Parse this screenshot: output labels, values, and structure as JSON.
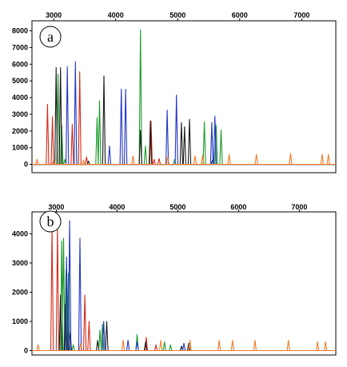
{
  "chart_data": [
    {
      "type": "line",
      "panel_label": "a",
      "xlim": [
        2650,
        7550
      ],
      "ylim": [
        -500,
        8600
      ],
      "x_ticks": [
        3000,
        4000,
        5000,
        6000,
        7000
      ],
      "x_tick_labels": [
        "3000",
        "4000",
        "5000",
        "6000",
        "7000"
      ],
      "y_ticks": [
        0,
        1000,
        2000,
        3000,
        4000,
        5000,
        6000,
        7000,
        8000
      ],
      "y_tick_labels": [
        "0",
        "1000",
        "2000",
        "3000",
        "4000",
        "5000",
        "6000",
        "7000",
        "8000"
      ],
      "grid": false,
      "series": [
        {
          "color": "#d62a1a",
          "peaks": [
            [
              2900,
              3600
            ],
            [
              2980,
              2850
            ],
            [
              3300,
              2400
            ],
            [
              3420,
              5550
            ],
            [
              3530,
              450
            ],
            [
              4570,
              2600
            ],
            [
              4620,
              300
            ],
            [
              4700,
              350
            ]
          ]
        },
        {
          "color": "#1a9a2a",
          "peaks": [
            [
              3070,
              5400
            ],
            [
              3130,
              2350
            ],
            [
              3180,
              300
            ],
            [
              3700,
              2800
            ],
            [
              3740,
              3800
            ],
            [
              4400,
              8050
            ],
            [
              4480,
              1100
            ],
            [
              4950,
              300
            ],
            [
              5430,
              2550
            ],
            [
              5620,
              2350
            ],
            [
              5700,
              2050
            ]
          ]
        },
        {
          "color": "#1a1a1a",
          "peaks": [
            [
              3040,
              5800
            ],
            [
              3110,
              5800
            ],
            [
              3560,
              200
            ],
            [
              3810,
              5300
            ],
            [
              4400,
              2050
            ],
            [
              4560,
              2600
            ],
            [
              5060,
              2500
            ],
            [
              5110,
              2250
            ],
            [
              5190,
              2700
            ],
            [
              5560,
              250
            ]
          ]
        },
        {
          "color": "#2236c8",
          "peaks": [
            [
              3220,
              5850
            ],
            [
              3350,
              6150
            ],
            [
              3900,
              1100
            ],
            [
              4090,
              4500
            ],
            [
              4160,
              4500
            ],
            [
              4830,
              3250
            ],
            [
              4980,
              4150
            ],
            [
              5550,
              2500
            ],
            [
              5600,
              2900
            ]
          ]
        },
        {
          "color": "#f07a28",
          "peaks": [
            [
              2730,
              300
            ],
            [
              3000,
              300
            ],
            [
              3480,
              250
            ],
            [
              4280,
              500
            ],
            [
              4840,
              450
            ],
            [
              5280,
              500
            ],
            [
              5400,
              550
            ],
            [
              5830,
              600
            ],
            [
              6270,
              600
            ],
            [
              6820,
              650
            ],
            [
              7330,
              600
            ],
            [
              7430,
              600
            ]
          ]
        }
      ]
    },
    {
      "type": "line",
      "panel_label": "b",
      "xlim": [
        2600,
        7600
      ],
      "ylim": [
        -150,
        4750
      ],
      "x_ticks": [
        3000,
        4000,
        5000,
        6000,
        7000
      ],
      "x_tick_labels": [
        "3000",
        "4000",
        "5000",
        "6000",
        "7000"
      ],
      "y_ticks": [
        0,
        1000,
        2000,
        3000,
        4000
      ],
      "y_tick_labels": [
        "0",
        "1000",
        "2000",
        "3000",
        "4000"
      ],
      "grid": false,
      "series": [
        {
          "color": "#d62a1a",
          "peaks": [
            [
              2930,
              4200
            ],
            [
              3020,
              4200
            ],
            [
              3470,
              1900
            ],
            [
              3540,
              1000
            ],
            [
              4480,
              450
            ],
            [
              4640,
              200
            ]
          ]
        },
        {
          "color": "#1a9a2a",
          "peaks": [
            [
              3090,
              3750
            ],
            [
              3120,
              3850
            ],
            [
              3160,
              2750
            ],
            [
              3200,
              2650
            ],
            [
              3280,
              200
            ],
            [
              3720,
              700
            ],
            [
              3760,
              900
            ],
            [
              4330,
              550
            ],
            [
              4780,
              300
            ],
            [
              4880,
              200
            ]
          ]
        },
        {
          "color": "#1a1a1a",
          "peaks": [
            [
              3070,
              1900
            ],
            [
              3150,
              1600
            ],
            [
              3230,
              600
            ],
            [
              3680,
              350
            ],
            [
              3830,
              1000
            ],
            [
              4470,
              300
            ],
            [
              5060,
              150
            ],
            [
              5180,
              250
            ]
          ]
        },
        {
          "color": "#2236c8",
          "peaks": [
            [
              3170,
              3200
            ],
            [
              3220,
              4450
            ],
            [
              3390,
              3850
            ],
            [
              3780,
              1000
            ],
            [
              4180,
              350
            ],
            [
              4330,
              300
            ],
            [
              5100,
              250
            ]
          ]
        },
        {
          "color": "#f07a28",
          "peaks": [
            [
              2700,
              200
            ],
            [
              3400,
              250
            ],
            [
              4100,
              350
            ],
            [
              4720,
              350
            ],
            [
              5200,
              350
            ],
            [
              5680,
              350
            ],
            [
              5900,
              350
            ],
            [
              6270,
              350
            ],
            [
              6820,
              350
            ],
            [
              7300,
              300
            ],
            [
              7430,
              300
            ]
          ]
        }
      ]
    }
  ]
}
